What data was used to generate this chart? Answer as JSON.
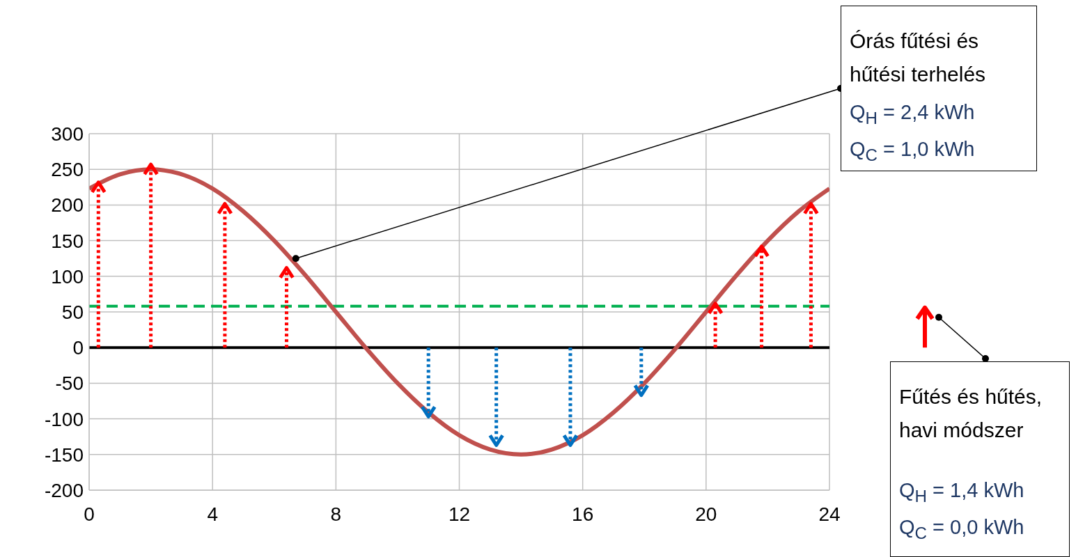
{
  "chart_data": {
    "type": "line",
    "xlim": [
      0,
      24
    ],
    "xticks": [
      0,
      4,
      8,
      12,
      16,
      20,
      24
    ],
    "ylim": [
      -200,
      300
    ],
    "yticks": [
      -200,
      -150,
      -100,
      -50,
      0,
      50,
      100,
      150,
      200,
      250,
      300
    ],
    "grid": true,
    "series": [
      {
        "type": "line",
        "color": "#c0504d",
        "x": [
          0,
          1,
          2,
          3,
          4,
          5,
          6,
          7,
          8,
          9,
          10,
          11,
          12,
          13,
          14,
          15,
          16,
          17,
          18,
          19,
          20,
          21,
          22,
          23,
          24
        ],
        "values": [
          223,
          243,
          250,
          243,
          223,
          191,
          150,
          102,
          50,
          -2,
          -50,
          -91,
          -123,
          -143,
          -150,
          -143,
          -123,
          -91,
          -50,
          -2,
          50,
          102,
          150,
          191,
          223
        ]
      },
      {
        "type": "lollipop",
        "color": "#ff0000",
        "line_style": "dotted",
        "x": [
          0.3,
          2,
          4.4,
          6.4,
          20.3,
          21.8,
          23.4
        ],
        "values": [
          225,
          250,
          195,
          105,
          55,
          135,
          195
        ]
      },
      {
        "type": "lollipop",
        "color": "#0070c0",
        "line_style": "dotted",
        "x": [
          11,
          13.2,
          15.6,
          17.9
        ],
        "values": [
          -90,
          -130,
          -130,
          -60
        ]
      }
    ],
    "ref_lines": [
      {
        "axis": "y",
        "value": 0,
        "color": "#000000",
        "line_style": "solid"
      },
      {
        "axis": "y",
        "value": 58,
        "color": "#00b050",
        "line_style": "dashed"
      }
    ],
    "annotations": [
      {
        "text": "Órás fűtési és hűtési terhelés\nQ$_{H}$ = 2,4 kWh\nQ$_{C}$ = 1,0 kWh",
        "x": 6.7,
        "y": 125
      },
      "Fűtés és hűtés, havi módszer\nQ$_{H}$ = 1,4 kWh\nQ$_{C}$ = 0,0 kWh"
    ]
  }
}
